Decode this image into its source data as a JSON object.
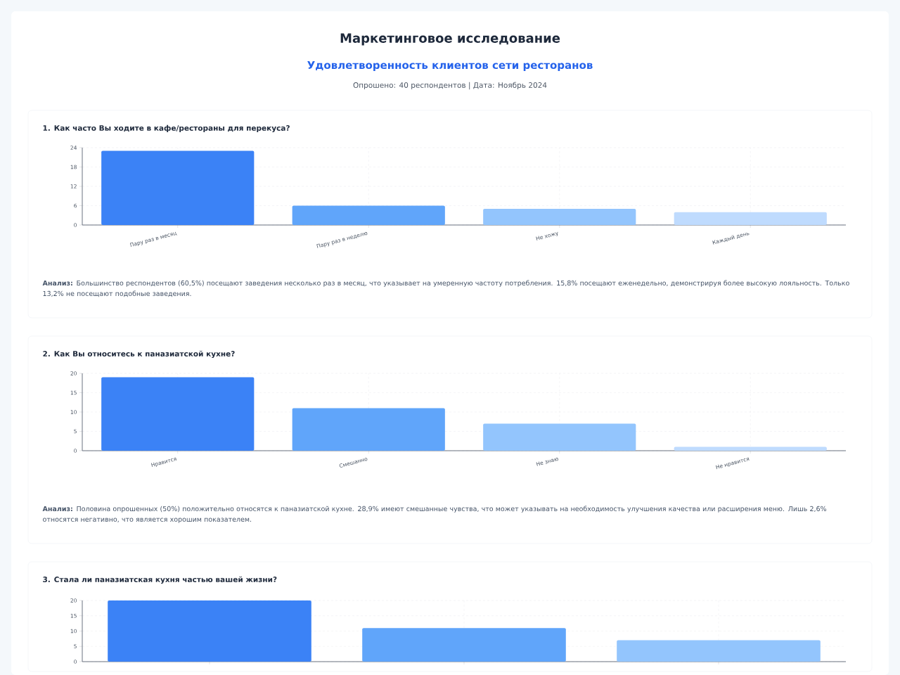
{
  "chart_data": [
    {
      "type": "other",
      "title": "Маркетинговое исследование",
      "subtitle": "Удовлетворенность клиентов сети ресторанов",
      "annotations": [
        "Опрошено: 40 респондентов | Дата: Ноябрь 2024"
      ]
    },
    {
      "type": "bar",
      "title": "1. Как часто Вы ходите в кафе/рестораны для перекуса?",
      "categories": [
        "Пару раз в месяц",
        "Пару раз в неделю",
        "Не хожу",
        "Каждый день"
      ],
      "values": [
        23,
        6,
        5,
        4
      ],
      "colors": [
        "#3b82f6",
        "#60a5fa",
        "#93c5fd",
        "#bfdbfe"
      ],
      "ylim": [
        0,
        24
      ],
      "yticks": [
        0,
        6,
        12,
        18,
        24
      ],
      "grid": true,
      "annotations": [
        "**Анализ:** Большинство респондентов (60,5%) посещают заведения несколько раз в месяц, что указывает на умеренную частоту потребления. 15,8% посещают еженедельно, демонстрируя более высокую лояльность. Только 13,2% не посещают подобные заведения."
      ]
    },
    {
      "type": "bar",
      "title": "2. Как Вы относитесь к паназиатской кухне?",
      "categories": [
        "Нравится",
        "Смешанно",
        "Не знаю",
        "Не нравится"
      ],
      "values": [
        19,
        11,
        7,
        1
      ],
      "colors": [
        "#3b82f6",
        "#60a5fa",
        "#93c5fd",
        "#bfdbfe"
      ],
      "ylim": [
        0,
        20
      ],
      "yticks": [
        0,
        5,
        10,
        15,
        20
      ],
      "grid": true,
      "annotations": [
        "**Анализ:** Половина опрошенных (50%) положительно относятся к паназиатской кухне. 28,9% имеют смешанные чувства, что может указывать на необходимость улучшения качества или расширения меню. Лишь 2,6% относятся негативно, что является хорошим показателем."
      ]
    },
    {
      "type": "bar",
      "title": "3. Стала ли паназиатская кухня частью вашей жизни?",
      "categories": [
        null,
        null,
        null
      ],
      "values": [
        20,
        11,
        7
      ],
      "colors": [
        "#3b82f6",
        "#60a5fa",
        "#93c5fd"
      ],
      "ylim": [
        0,
        20
      ],
      "yticks": [
        0,
        5,
        10,
        15,
        20
      ],
      "grid": true
    }
  ]
}
